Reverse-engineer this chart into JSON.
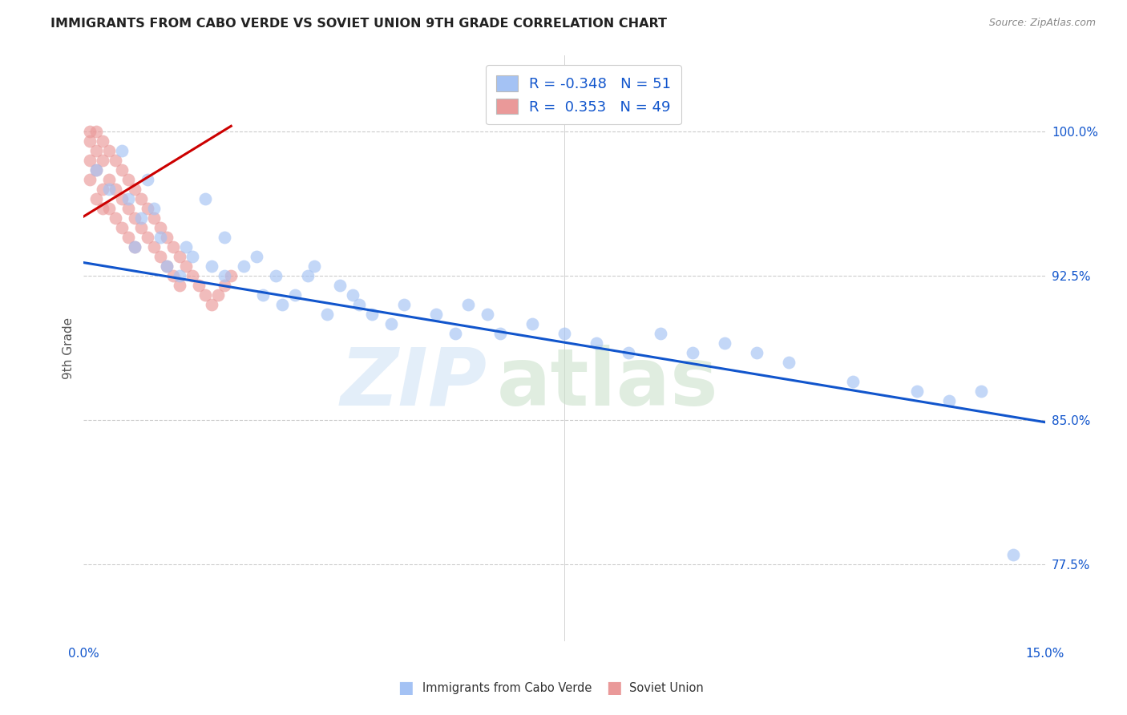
{
  "title": "IMMIGRANTS FROM CABO VERDE VS SOVIET UNION 9TH GRADE CORRELATION CHART",
  "source": "Source: ZipAtlas.com",
  "ylabel": "9th Grade",
  "ytick_labels": [
    "77.5%",
    "85.0%",
    "92.5%",
    "100.0%"
  ],
  "ytick_values": [
    0.775,
    0.85,
    0.925,
    1.0
  ],
  "xmin": 0.0,
  "xmax": 0.15,
  "ymin": 0.735,
  "ymax": 1.04,
  "legend_blue_r": "-0.348",
  "legend_blue_n": "51",
  "legend_pink_r": "0.353",
  "legend_pink_n": "49",
  "blue_color": "#a4c2f4",
  "pink_color": "#ea9999",
  "blue_line_color": "#1155cc",
  "pink_line_color": "#cc0000",
  "blue_scatter_x": [
    0.002,
    0.004,
    0.006,
    0.007,
    0.008,
    0.009,
    0.01,
    0.011,
    0.012,
    0.013,
    0.015,
    0.016,
    0.017,
    0.019,
    0.02,
    0.022,
    0.022,
    0.025,
    0.027,
    0.028,
    0.03,
    0.031,
    0.033,
    0.035,
    0.036,
    0.038,
    0.04,
    0.042,
    0.043,
    0.045,
    0.048,
    0.05,
    0.055,
    0.058,
    0.06,
    0.063,
    0.065,
    0.07,
    0.075,
    0.08,
    0.085,
    0.09,
    0.095,
    0.1,
    0.105,
    0.11,
    0.12,
    0.13,
    0.135,
    0.14,
    0.145
  ],
  "blue_scatter_y": [
    0.98,
    0.97,
    0.99,
    0.965,
    0.94,
    0.955,
    0.975,
    0.96,
    0.945,
    0.93,
    0.925,
    0.94,
    0.935,
    0.965,
    0.93,
    0.945,
    0.925,
    0.93,
    0.935,
    0.915,
    0.925,
    0.91,
    0.915,
    0.925,
    0.93,
    0.905,
    0.92,
    0.915,
    0.91,
    0.905,
    0.9,
    0.91,
    0.905,
    0.895,
    0.91,
    0.905,
    0.895,
    0.9,
    0.895,
    0.89,
    0.885,
    0.895,
    0.885,
    0.89,
    0.885,
    0.88,
    0.87,
    0.865,
    0.86,
    0.865,
    0.78
  ],
  "pink_scatter_x": [
    0.001,
    0.001,
    0.001,
    0.001,
    0.002,
    0.002,
    0.002,
    0.002,
    0.003,
    0.003,
    0.003,
    0.003,
    0.004,
    0.004,
    0.004,
    0.005,
    0.005,
    0.005,
    0.006,
    0.006,
    0.006,
    0.007,
    0.007,
    0.007,
    0.008,
    0.008,
    0.008,
    0.009,
    0.009,
    0.01,
    0.01,
    0.011,
    0.011,
    0.012,
    0.012,
    0.013,
    0.013,
    0.014,
    0.014,
    0.015,
    0.015,
    0.016,
    0.017,
    0.018,
    0.019,
    0.02,
    0.021,
    0.022,
    0.023
  ],
  "pink_scatter_y": [
    1.0,
    0.995,
    0.985,
    0.975,
    1.0,
    0.99,
    0.98,
    0.965,
    0.995,
    0.985,
    0.97,
    0.96,
    0.99,
    0.975,
    0.96,
    0.985,
    0.97,
    0.955,
    0.98,
    0.965,
    0.95,
    0.975,
    0.96,
    0.945,
    0.97,
    0.955,
    0.94,
    0.965,
    0.95,
    0.96,
    0.945,
    0.955,
    0.94,
    0.95,
    0.935,
    0.945,
    0.93,
    0.94,
    0.925,
    0.935,
    0.92,
    0.93,
    0.925,
    0.92,
    0.915,
    0.91,
    0.915,
    0.92,
    0.925
  ],
  "blue_line_x": [
    0.0,
    0.15
  ],
  "blue_line_y": [
    0.932,
    0.849
  ],
  "pink_line_x": [
    0.0,
    0.023
  ],
  "pink_line_y": [
    0.956,
    1.003
  ]
}
